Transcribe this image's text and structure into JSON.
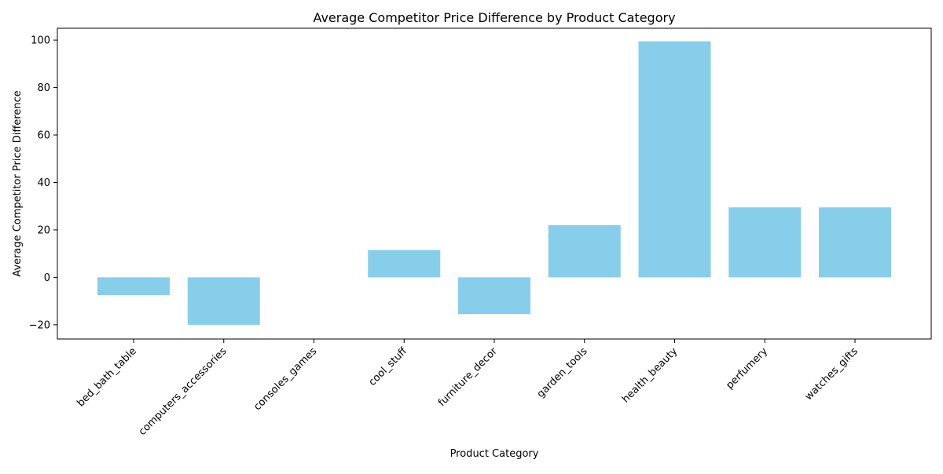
{
  "chart_data": {
    "type": "bar",
    "title": "Average Competitor Price Difference by Product Category",
    "xlabel": "Product Category",
    "ylabel": "Average Competitor Price Difference",
    "categories": [
      "bed_bath_table",
      "computers_accessories",
      "consoles_games",
      "cool_stuff",
      "furniture_decor",
      "garden_tools",
      "health_beauty",
      "perfumery",
      "watches_gifts"
    ],
    "values": [
      -7.5,
      -20,
      0,
      11.5,
      -15.5,
      22,
      99.5,
      29.5,
      29.5
    ],
    "ylim": [
      -26,
      105
    ],
    "yticks": [
      -20,
      0,
      20,
      40,
      60,
      80,
      100
    ],
    "ytick_labels": [
      "−20",
      "0",
      "20",
      "40",
      "60",
      "80",
      "100"
    ],
    "grid": false,
    "bar_color": "#87ceeb"
  }
}
